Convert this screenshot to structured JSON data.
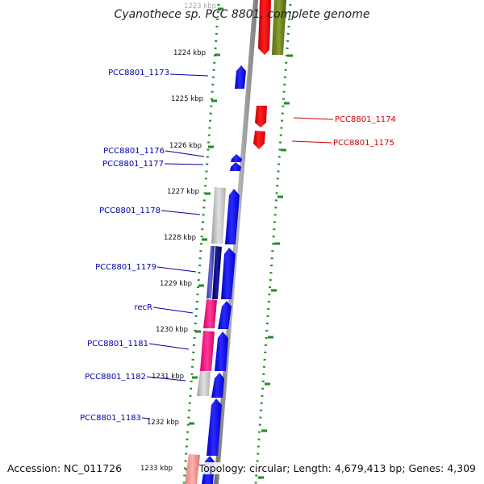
{
  "title": "Cyanothece sp. PCC 8801, complete genome",
  "accession": "Accession: NC_011726",
  "topology": "Topology: circular; Length: 4,679,413 bp; Genes: 4,309",
  "colors": {
    "plus_strand": "#0000ff",
    "minus_strand": "#ff0000",
    "backbone": "#999999",
    "ticks": "#228b22",
    "label_plus": "#0000aa",
    "label_minus": "#cc0000"
  },
  "kbp_labels": [
    "1223 kbp",
    "1224 kbp",
    "1225 kbp",
    "1226 kbp",
    "1227 kbp",
    "1228 kbp",
    "1229 kbp",
    "1230 kbp",
    "1231 kbp",
    "1232 kbp",
    "1233 kbp"
  ],
  "gene_labels": {
    "left": [
      "PCC8801_1173",
      "PCC8801_1176",
      "PCC8801_1177",
      "PCC8801_1178",
      "PCC8801_1179",
      "recR",
      "PCC8801_1181",
      "PCC8801_1182",
      "PCC8801_1183"
    ],
    "right": [
      "PCC8801_1174",
      "PCC8801_1175"
    ]
  }
}
